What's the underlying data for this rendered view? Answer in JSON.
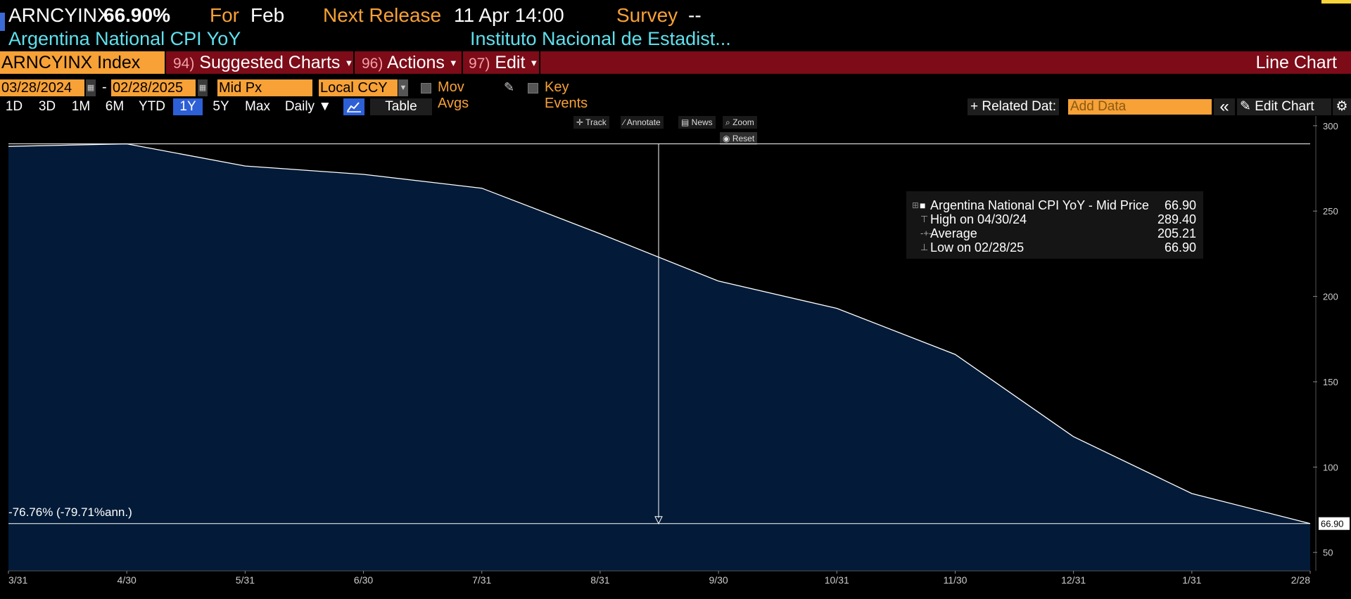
{
  "header": {
    "ticker": "ARNCYINX",
    "value": "66.90%",
    "for_label": "For",
    "for_value": "Feb",
    "next_release_label": "Next Release",
    "next_release_value": "11 Apr 14:00",
    "survey_label": "Survey",
    "survey_value": "--",
    "name": "Argentina National CPI YoY",
    "source": "Instituto Nacional de Estadist..."
  },
  "menubar": {
    "security": "ARNCYINX Index",
    "items": [
      {
        "num": "94)",
        "label": "Suggested Charts"
      },
      {
        "num": "96)",
        "label": "Actions"
      },
      {
        "num": "97)",
        "label": "Edit"
      }
    ],
    "chart_type": "Line Chart"
  },
  "controls": {
    "start_date": "03/28/2024",
    "date_sep": "-",
    "end_date": "02/28/2025",
    "price_field": "Mid Px",
    "currency": "Local CCY",
    "mov_avgs": "Mov Avgs",
    "key_events": "Key Events",
    "ranges": [
      "1D",
      "3D",
      "1M",
      "6M",
      "YTD",
      "1Y",
      "5Y",
      "Max"
    ],
    "active_range": "1Y",
    "frequency": "Daily ▼",
    "table": "Table",
    "related_data": "+ Related Dat:",
    "add_data_placeholder": "Add Data",
    "collapse": "«",
    "edit_chart": "Edit Chart"
  },
  "tools": {
    "track": "Track",
    "annotate": "Annotate",
    "news": "News",
    "zoom": "Zoom",
    "reset": "Reset"
  },
  "legend": {
    "series": "Argentina National CPI YoY - Mid Price",
    "series_value": "66.90",
    "high_label": "High on 04/30/24",
    "high_value": "289.40",
    "avg_label": "Average",
    "avg_value": "205.21",
    "low_label": "Low on 02/28/25",
    "low_value": "66.90"
  },
  "chart_data": {
    "type": "area",
    "x": [
      "3/31",
      "4/30",
      "5/31",
      "6/30",
      "7/31",
      "8/31",
      "9/30",
      "10/31",
      "11/30",
      "12/31",
      "1/31",
      "2/28"
    ],
    "series": [
      {
        "name": "Argentina National CPI YoY - Mid Price",
        "values": [
          287.9,
          289.4,
          276.4,
          271.5,
          263.4,
          236.7,
          209.0,
          193.0,
          166.0,
          117.8,
          84.5,
          66.9
        ]
      }
    ],
    "ylim": [
      40,
      302
    ],
    "yticks": [
      50,
      100,
      150,
      200,
      250,
      300
    ],
    "last_value_label": "66.90",
    "change_annotation": "-76.76% (-79.71%ann.)",
    "grid": false,
    "color": "#ffffff",
    "fill": "#031b38"
  }
}
